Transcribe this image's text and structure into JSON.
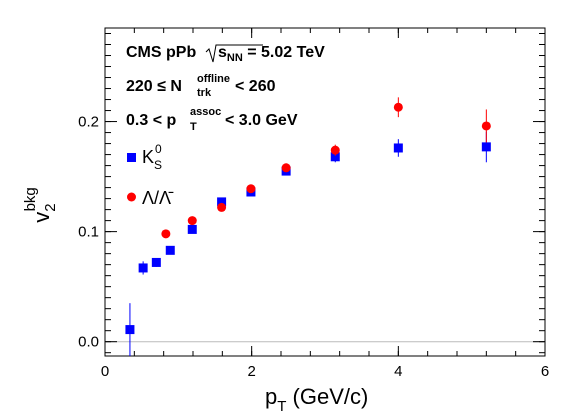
{
  "chart_data": {
    "type": "scatter",
    "title": "",
    "xlabel": {
      "main": "p",
      "sub": "T",
      "rest": " (GeV/c)"
    },
    "ylabel": {
      "main": "v",
      "sub": "2",
      "sup": "bkg"
    },
    "xlim": [
      0,
      6
    ],
    "ylim": [
      -0.013,
      0.285
    ],
    "x_ticks": [
      0,
      2,
      4,
      6
    ],
    "x_tick_labels": [
      "0",
      "2",
      "4",
      "6"
    ],
    "y_ticks": [
      0.0,
      0.1,
      0.2
    ],
    "y_tick_labels": [
      "0.0",
      "0.1",
      "0.2"
    ],
    "zero_line": true,
    "grid": false,
    "legend_position": "top-left",
    "annotations": {
      "line1_a": "CMS pPb",
      "line1_b": "s",
      "line1_b_sub": "NN",
      "line1_c": " = 5.02 TeV",
      "line2_a": "220 ≤ N",
      "line2_sub": "trk",
      "line2_sup": "offline",
      "line2_b": " < 260",
      "line3_a": "0.3 < p",
      "line3_sub": "T",
      "line3_sup": "assoc",
      "line3_b": " < 3.0 GeV"
    },
    "series": [
      {
        "name": "K",
        "name_sub": "S",
        "name_sup": "0",
        "marker": "square",
        "color": "#0000ff",
        "x": [
          0.34,
          0.52,
          0.7,
          0.89,
          1.19,
          1.59,
          1.99,
          2.47,
          3.14,
          4.0,
          5.2
        ],
        "y": [
          0.011,
          0.067,
          0.072,
          0.083,
          0.102,
          0.127,
          0.136,
          0.155,
          0.168,
          0.176,
          0.177
        ],
        "yerr": [
          0.024,
          0.006,
          0.004,
          0.003,
          0.003,
          0.003,
          0.003,
          0.004,
          0.005,
          0.008,
          0.014
        ]
      },
      {
        "name": "Λ/Λ̄",
        "marker": "circle",
        "color": "#ff0000",
        "x": [
          0.83,
          1.19,
          1.59,
          1.99,
          2.47,
          3.14,
          4.0,
          5.2
        ],
        "y": [
          0.098,
          0.11,
          0.122,
          0.139,
          0.158,
          0.174,
          0.213,
          0.196
        ],
        "yerr": [
          0.003,
          0.003,
          0.003,
          0.003,
          0.004,
          0.005,
          0.009,
          0.015
        ]
      }
    ]
  }
}
